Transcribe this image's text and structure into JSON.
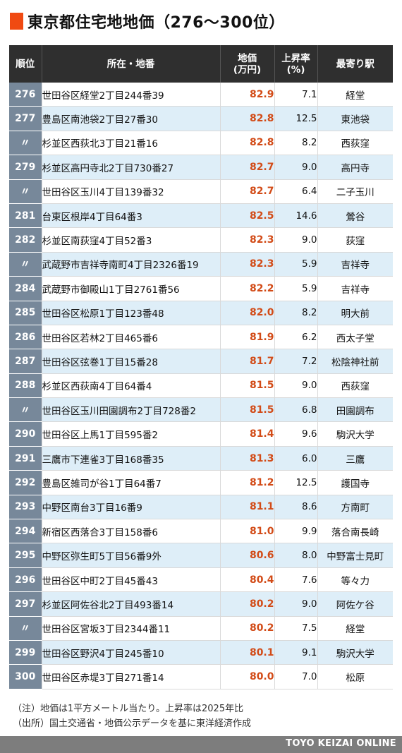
{
  "title": "東京都住宅地地価（276〜300位）",
  "columns": {
    "rank": "順位",
    "address": "所在・地番",
    "price_line1": "地価",
    "price_line2": "(万円)",
    "rate_line1": "上昇率",
    "rate_line2": "(%)",
    "station": "最寄り駅"
  },
  "rows": [
    {
      "rank": "276",
      "address": "世田谷区経堂2丁目244番39",
      "price": "82.9",
      "rate": "7.1",
      "station": "経堂"
    },
    {
      "rank": "277",
      "address": "豊島区南池袋2丁目27番30",
      "price": "82.8",
      "rate": "12.5",
      "station": "東池袋"
    },
    {
      "rank": "〃",
      "address": "杉並区西荻北3丁目21番16",
      "price": "82.8",
      "rate": "8.2",
      "station": "西荻窪"
    },
    {
      "rank": "279",
      "address": "杉並区高円寺北2丁目730番27",
      "price": "82.7",
      "rate": "9.0",
      "station": "高円寺"
    },
    {
      "rank": "〃",
      "address": "世田谷区玉川4丁目139番32",
      "price": "82.7",
      "rate": "6.4",
      "station": "二子玉川"
    },
    {
      "rank": "281",
      "address": "台東区根岸4丁目64番3",
      "price": "82.5",
      "rate": "14.6",
      "station": "鶯谷"
    },
    {
      "rank": "282",
      "address": "杉並区南荻窪4丁目52番3",
      "price": "82.3",
      "rate": "9.0",
      "station": "荻窪"
    },
    {
      "rank": "〃",
      "address": "武蔵野市吉祥寺南町4丁目2326番19",
      "price": "82.3",
      "rate": "5.9",
      "station": "吉祥寺"
    },
    {
      "rank": "284",
      "address": "武蔵野市御殿山1丁目2761番56",
      "price": "82.2",
      "rate": "5.9",
      "station": "吉祥寺"
    },
    {
      "rank": "285",
      "address": "世田谷区松原1丁目123番48",
      "price": "82.0",
      "rate": "8.2",
      "station": "明大前"
    },
    {
      "rank": "286",
      "address": "世田谷区若林2丁目465番6",
      "price": "81.9",
      "rate": "6.2",
      "station": "西太子堂"
    },
    {
      "rank": "287",
      "address": "世田谷区弦巻1丁目15番28",
      "price": "81.7",
      "rate": "7.2",
      "station": "松陰神社前"
    },
    {
      "rank": "288",
      "address": "杉並区西荻南4丁目64番4",
      "price": "81.5",
      "rate": "9.0",
      "station": "西荻窪"
    },
    {
      "rank": "〃",
      "address": "世田谷区玉川田園調布2丁目728番2",
      "price": "81.5",
      "rate": "6.8",
      "station": "田園調布"
    },
    {
      "rank": "290",
      "address": "世田谷区上馬1丁目595番2",
      "price": "81.4",
      "rate": "9.6",
      "station": "駒沢大学"
    },
    {
      "rank": "291",
      "address": "三鷹市下連雀3丁目168番35",
      "price": "81.3",
      "rate": "6.0",
      "station": "三鷹"
    },
    {
      "rank": "292",
      "address": "豊島区雑司が谷1丁目64番7",
      "price": "81.2",
      "rate": "12.5",
      "station": "護国寺"
    },
    {
      "rank": "293",
      "address": "中野区南台3丁目16番9",
      "price": "81.1",
      "rate": "8.6",
      "station": "方南町"
    },
    {
      "rank": "294",
      "address": "新宿区西落合3丁目158番6",
      "price": "81.0",
      "rate": "9.9",
      "station": "落合南長崎"
    },
    {
      "rank": "295",
      "address": "中野区弥生町5丁目56番9外",
      "price": "80.6",
      "rate": "8.0",
      "station": "中野富士見町"
    },
    {
      "rank": "296",
      "address": "世田谷区中町2丁目45番43",
      "price": "80.4",
      "rate": "7.6",
      "station": "等々力"
    },
    {
      "rank": "297",
      "address": "杉並区阿佐谷北2丁目493番14",
      "price": "80.2",
      "rate": "9.0",
      "station": "阿佐ケ谷"
    },
    {
      "rank": "〃",
      "address": "世田谷区宮坂3丁目2344番11",
      "price": "80.2",
      "rate": "7.5",
      "station": "経堂"
    },
    {
      "rank": "299",
      "address": "世田谷区野沢4丁目245番10",
      "price": "80.1",
      "rate": "9.1",
      "station": "駒沢大学"
    },
    {
      "rank": "300",
      "address": "世田谷区赤堤3丁目271番14",
      "price": "80.0",
      "rate": "7.0",
      "station": "松原"
    }
  ],
  "notes": {
    "note1": "（注）地価は1平方メートル当たり。上昇率は2025年比",
    "note2": "（出所）国土交通省・地価公示データを基に東洋経済作成"
  },
  "footer": "TOYO KEIZAI ONLINE",
  "colors": {
    "accent": "#f04a12",
    "header_bg": "#2f2f2f",
    "rank_bg": "#77889a",
    "stripe": "#deeef8",
    "price_text": "#d24b17",
    "footer_bg": "#7d7d7d"
  }
}
